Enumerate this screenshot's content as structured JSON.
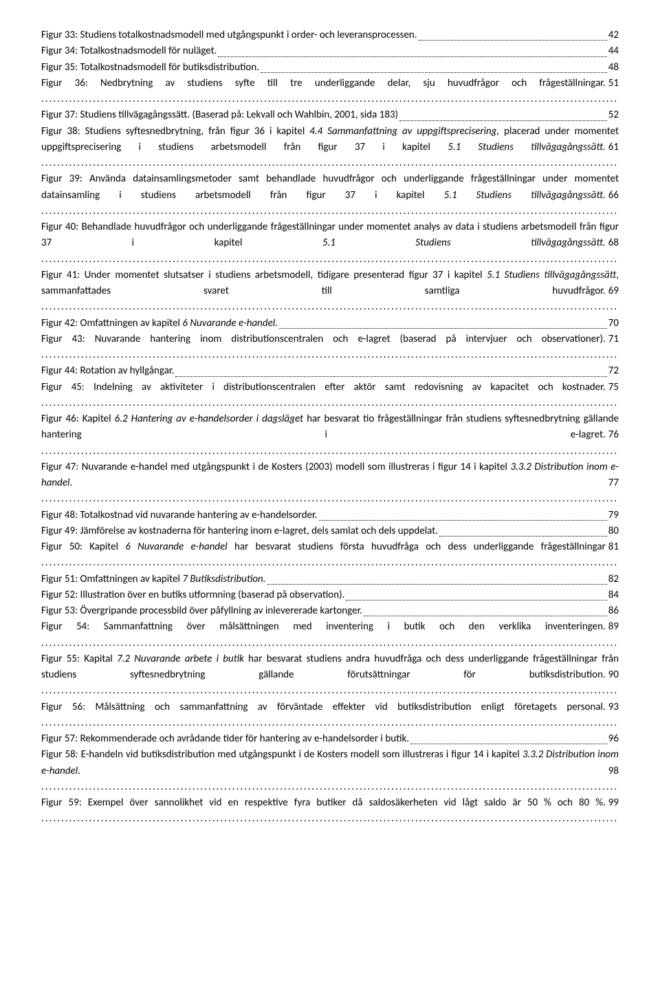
{
  "entries": [
    {
      "text": "Figur 33: Studiens totalkostnadsmodell med utgångspunkt i order- och leveransprocessen.",
      "page": "42"
    },
    {
      "text": "Figur 34: Totalkostnadsmodell för nuläget.",
      "page": "44"
    },
    {
      "text": "Figur 35: Totalkostnadsmodell för butiksdistribution.",
      "page": "48"
    },
    {
      "textParts": [
        {
          "t": "Figur 36: Nedbrytning av studiens syfte till tre underliggande delar, sju huvudfrågor och frågeställningar."
        }
      ],
      "page": "51",
      "multiline": true
    },
    {
      "text": "Figur 37: Studiens tillvägagångssätt. (Baserad på: Lekvall och Wahlbin, 2001, sida 183)",
      "page": "52"
    },
    {
      "textParts": [
        {
          "t": "Figur 38: Studiens syftesnedbrytning, från figur 36 i kapitel "
        },
        {
          "t": "4.4 Sammanfattning av uppgiftsprecisering,",
          "i": true
        },
        {
          "t": " placerad under momentet uppgiftsprecisering i studiens arbetsmodell från figur 37 i kapitel "
        },
        {
          "t": "5.1 Studiens tillvägagångssätt.",
          "i": true
        }
      ],
      "page": "61",
      "multiline": true
    },
    {
      "textParts": [
        {
          "t": "Figur 39: Använda datainsamlingsmetoder samt behandlade huvudfrågor och underliggande frågeställningar under momentet datainsamling i studiens arbetsmodell från figur 37 i kapitel "
        },
        {
          "t": "5.1 Studiens tillvägagångssätt.",
          "i": true
        },
        {
          "t": " "
        }
      ],
      "page": "66",
      "multiline": true
    },
    {
      "textParts": [
        {
          "t": "Figur 40: Behandlade huvudfrågor och underliggande frågeställningar under momentet analys av data i studiens arbetsmodell från figur 37 i kapitel "
        },
        {
          "t": "5.1 Studiens tillvägagångssätt.",
          "i": true
        }
      ],
      "page": "68",
      "multiline": true
    },
    {
      "textParts": [
        {
          "t": "Figur 41: Under momentet slutsatser i studiens arbetsmodell, tidigare presenterad figur 37 i kapitel "
        },
        {
          "t": "5.1 Studiens tillvägagångssätt",
          "i": true
        },
        {
          "t": ", sammanfattades svaret till samtliga huvudfrågor."
        }
      ],
      "page": "69",
      "multiline": true
    },
    {
      "textParts": [
        {
          "t": "Figur 42: Omfattningen av kapitel "
        },
        {
          "t": "6 Nuvarande e-handel.",
          "i": true
        },
        {
          "t": " "
        }
      ],
      "page": "70"
    },
    {
      "textParts": [
        {
          "t": "Figur 43: Nuvarande hantering inom distributionscentralen och e-lagret (baserad på intervjuer och observationer)."
        }
      ],
      "page": "71",
      "multiline": true
    },
    {
      "text": "Figur 44: Rotation av hyllgångar.",
      "page": "72"
    },
    {
      "textParts": [
        {
          "t": "Figur 45: Indelning av aktiviteter i distributionscentralen efter aktör samt redovisning av kapacitet och kostnader."
        }
      ],
      "page": "75",
      "multiline": true
    },
    {
      "textParts": [
        {
          "t": "Figur 46: Kapitel "
        },
        {
          "t": "6.2 Hantering av e-handelsorder i dagsläget",
          "i": true
        },
        {
          "t": " har besvarat tio frågeställningar från studiens syftesnedbrytning gällande hantering i e-lagret."
        }
      ],
      "page": "76",
      "multiline": true
    },
    {
      "textParts": [
        {
          "t": "Figur 47: Nuvarande e-handel med utgångspunkt i de Kosters (2003) modell som illustreras i figur 14 i kapitel "
        },
        {
          "t": "3.3.2 Distribution inom e-handel",
          "i": true
        },
        {
          "t": "."
        }
      ],
      "page": "77",
      "multiline": true
    },
    {
      "text": "Figur 48: Totalkostnad vid nuvarande hantering av e-handelsorder.",
      "page": "79"
    },
    {
      "text": "Figur 49: Jämförelse av kostnaderna för hantering inom e-lagret, dels samlat och dels uppdelat.",
      "page": "80"
    },
    {
      "textParts": [
        {
          "t": "Figur 50: Kapitel "
        },
        {
          "t": "6 Nuvarande e-handel",
          "i": true
        },
        {
          "t": " har besvarat studiens första huvudfråga och dess underliggande frågeställningar "
        }
      ],
      "page": "81",
      "multiline": true
    },
    {
      "textParts": [
        {
          "t": "Figur 51: Omfattningen av kapitel "
        },
        {
          "t": "7 Butiksdistribution.",
          "i": true
        },
        {
          "t": " "
        }
      ],
      "page": "82"
    },
    {
      "text": "Figur 52: Illustration över en butiks utformning (baserad på observation).",
      "page": "84"
    },
    {
      "text": "Figur 53: Övergripande processbild över påfyllning av inlevererade kartonger.",
      "page": "86"
    },
    {
      "textParts": [
        {
          "t": "Figur 54: Sammanfattning över målsättningen med inventering i butik och den verklika inventeringen."
        }
      ],
      "page": "89",
      "multiline": true
    },
    {
      "textParts": [
        {
          "t": "Figur 55: Kapital "
        },
        {
          "t": "7.2 Nuvarande arbete i butik",
          "i": true
        },
        {
          "t": " har besvarat studiens andra huvudfråga och dess underliggande frågeställningar från studiens syftesnedbrytning gällande förutsättningar för butiksdistribution."
        }
      ],
      "page": "90",
      "multiline": true
    },
    {
      "textParts": [
        {
          "t": "Figur 56: Målsättning och sammanfattning av förväntade effekter vid butiksdistribution enligt företagets personal."
        }
      ],
      "page": "93",
      "multiline": true
    },
    {
      "text": "Figur 57: Rekommenderade och avrådande tider för hantering av e-handelsorder i butik.",
      "page": "96"
    },
    {
      "textParts": [
        {
          "t": "Figur 58: E-handeln vid butiksdistribution med utgångspunkt i de Kosters modell som illustreras i figur 14 i kapitel "
        },
        {
          "t": "3.3.2 Distribution inom e-handel",
          "i": true
        },
        {
          "t": "."
        }
      ],
      "page": "98",
      "multiline": true
    },
    {
      "textParts": [
        {
          "t": "Figur 59: Exempel över sannolikhet vid en respektive fyra butiker då saldosäkerheten vid lågt saldo är 50 % och 80 %."
        }
      ],
      "page": "99",
      "multiline": true
    }
  ]
}
